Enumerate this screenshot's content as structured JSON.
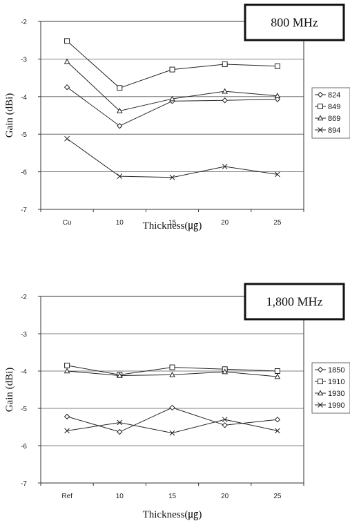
{
  "chart_data": [
    {
      "type": "line",
      "title": "800 MHz",
      "xlabel": "Thickness(㎍)",
      "ylabel": "Gain (dBi)",
      "categories": [
        "Cu",
        "10",
        "15",
        "20",
        "25"
      ],
      "ylim": [
        -7,
        -2
      ],
      "yticks": [
        "-2",
        "-3",
        "-4",
        "-5",
        "-6",
        "-7"
      ],
      "grid": true,
      "legend_position": "right",
      "series": [
        {
          "name": "824",
          "marker": "diamond",
          "values": [
            -3.75,
            -4.78,
            -4.12,
            -4.1,
            -4.07
          ]
        },
        {
          "name": "849",
          "marker": "square",
          "values": [
            -2.52,
            -3.77,
            -3.28,
            -3.14,
            -3.19
          ]
        },
        {
          "name": "869",
          "marker": "triangle",
          "values": [
            -3.07,
            -4.38,
            -4.06,
            -3.86,
            -3.98
          ]
        },
        {
          "name": "894",
          "marker": "x",
          "values": [
            -5.12,
            -6.12,
            -6.15,
            -5.86,
            -6.07
          ]
        }
      ]
    },
    {
      "type": "line",
      "title": "1,800 MHz",
      "xlabel": "Thickness(㎍)",
      "ylabel": "Gain (dBi)",
      "categories": [
        "Ref",
        "10",
        "15",
        "20",
        "25"
      ],
      "ylim": [
        -7,
        -2
      ],
      "yticks": [
        "-2",
        "-3",
        "-4",
        "-5",
        "-6",
        "-7"
      ],
      "grid": true,
      "legend_position": "right",
      "series": [
        {
          "name": "1850",
          "marker": "diamond",
          "values": [
            -5.22,
            -5.63,
            -4.98,
            -5.45,
            -5.3
          ]
        },
        {
          "name": "1910",
          "marker": "square",
          "values": [
            -3.85,
            -4.1,
            -3.9,
            -3.95,
            -4.0
          ]
        },
        {
          "name": "1930",
          "marker": "triangle",
          "values": [
            -4.0,
            -4.12,
            -4.1,
            -4.02,
            -4.15
          ]
        },
        {
          "name": "1990",
          "marker": "x",
          "values": [
            -5.6,
            -5.38,
            -5.66,
            -5.3,
            -5.6
          ]
        }
      ]
    }
  ]
}
